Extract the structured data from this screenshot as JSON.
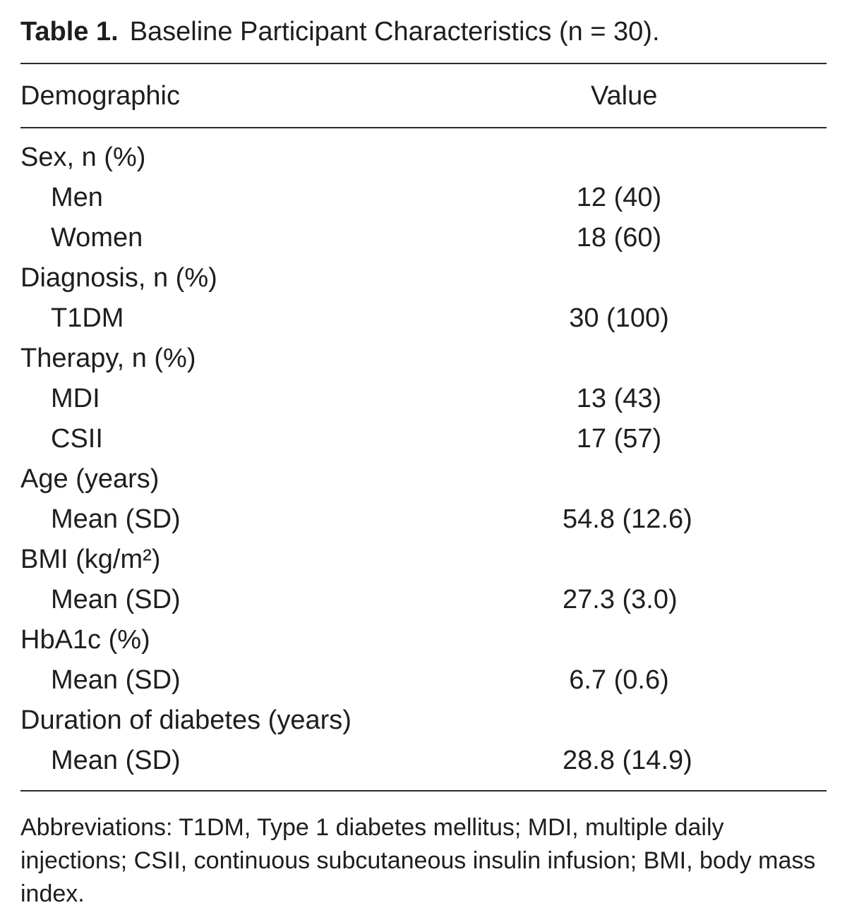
{
  "caption": {
    "label": "Table 1.",
    "title": "Baseline Participant Characteristics (n = 30)."
  },
  "header": {
    "col1": "Demographic",
    "col2": "Value"
  },
  "rows": [
    {
      "name": "Sex, n (%)",
      "value": ""
    },
    {
      "name": "Men",
      "value": "12 (40)"
    },
    {
      "name": "Women",
      "value": "18 (60)"
    },
    {
      "name": "Diagnosis, n (%)",
      "value": ""
    },
    {
      "name": "T1DM",
      "value": "30 (100)"
    },
    {
      "name": "Therapy, n (%)",
      "value": ""
    },
    {
      "name": "MDI",
      "value": "13 (43)"
    },
    {
      "name": "CSII",
      "value": "17 (57)"
    },
    {
      "name": "Age (years)",
      "value": ""
    },
    {
      "name": "Mean (SD)",
      "value": "54.8 (12.6)"
    },
    {
      "name": "BMI (kg/m²)",
      "value": ""
    },
    {
      "name": "Mean (SD)",
      "value": "27.3 (3.0)"
    },
    {
      "name": "HbA1c (%)",
      "value": ""
    },
    {
      "name": "Mean (SD)",
      "value": "6.7 (0.6)"
    },
    {
      "name": "Duration of diabetes (years)",
      "value": ""
    },
    {
      "name": "Mean (SD)",
      "value": "28.8 (14.9)"
    }
  ],
  "footnote": "Abbreviations: T1DM, Type 1 diabetes mellitus; MDI, multiple daily injections; CSII, continuous subcutaneous insulin infusion; BMI, body mass index."
}
